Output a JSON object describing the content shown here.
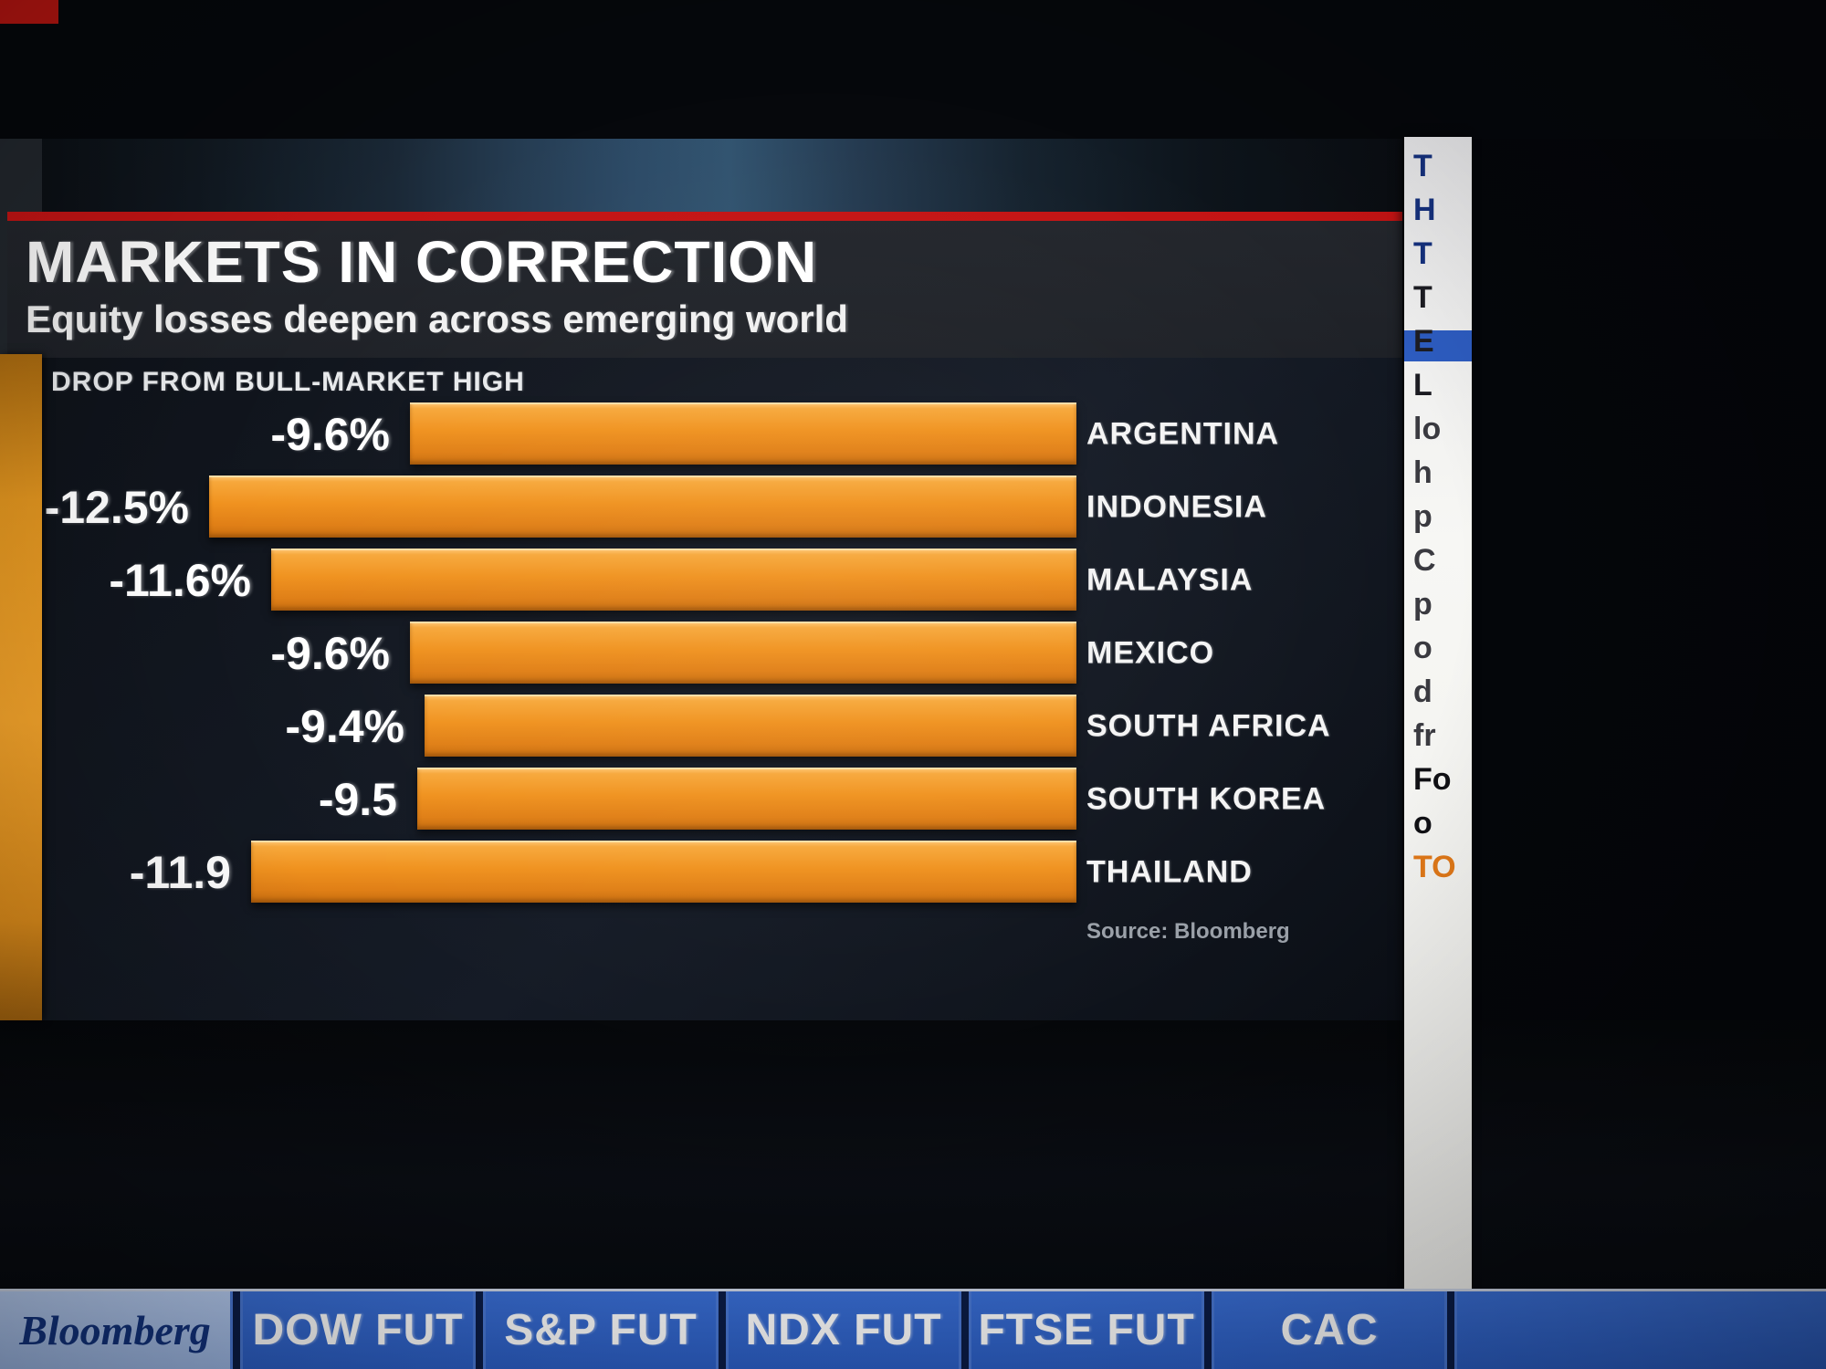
{
  "header": {
    "title": "MARKETS IN CORRECTION",
    "subtitle": "Equity losses deepen across emerging world"
  },
  "chart_data": {
    "type": "bar",
    "orientation": "horizontal",
    "title": "DROP FROM BULL-MARKET HIGH",
    "categories": [
      "ARGENTINA",
      "INDONESIA",
      "MALAYSIA",
      "MEXICO",
      "SOUTH AFRICA",
      "SOUTH KOREA",
      "THAILAND"
    ],
    "values": [
      -9.6,
      -12.5,
      -11.6,
      -9.6,
      -9.4,
      -9.5,
      -11.9
    ],
    "value_labels": [
      "-9.6%",
      "-12.5%",
      "-11.6%",
      "-9.6%",
      "-9.4%",
      "-9.5",
      "-11.9"
    ],
    "xlim": [
      0,
      13
    ],
    "bar_color": "#f0921f",
    "background_color": "#10141c",
    "source": "Source: Bloomberg",
    "legend": "none",
    "grid": "off"
  },
  "side_panel": {
    "fragments": [
      {
        "text": "T",
        "color": "#15317e"
      },
      {
        "text": "H",
        "color": "#15317e"
      },
      {
        "text": "T",
        "color": "#15317e"
      },
      {
        "text": "T",
        "color": "#1c1c22"
      },
      {
        "text": "E",
        "color": "#1c1c22"
      },
      {
        "text": "L",
        "color": "#1c1c22"
      },
      {
        "text": "lo",
        "color": "#3a3a40"
      },
      {
        "text": "h",
        "color": "#3a3a40"
      },
      {
        "text": "p",
        "color": "#3a3a40"
      },
      {
        "text": "C",
        "color": "#3a3a40"
      },
      {
        "text": "p",
        "color": "#3a3a40"
      },
      {
        "text": "o",
        "color": "#3a3a40"
      },
      {
        "text": "d",
        "color": "#3a3a40"
      },
      {
        "text": "fr",
        "color": "#3a3a40"
      },
      {
        "text": "Fo",
        "color": "#101014"
      },
      {
        "text": "o",
        "color": "#101014"
      },
      {
        "text": "TO",
        "color": "#e07818"
      }
    ]
  },
  "ticker": {
    "brand": "Bloomberg",
    "items": [
      "DOW FUT",
      "S&P FUT",
      "NDX FUT",
      "FTSE FUT",
      "CAC"
    ]
  }
}
